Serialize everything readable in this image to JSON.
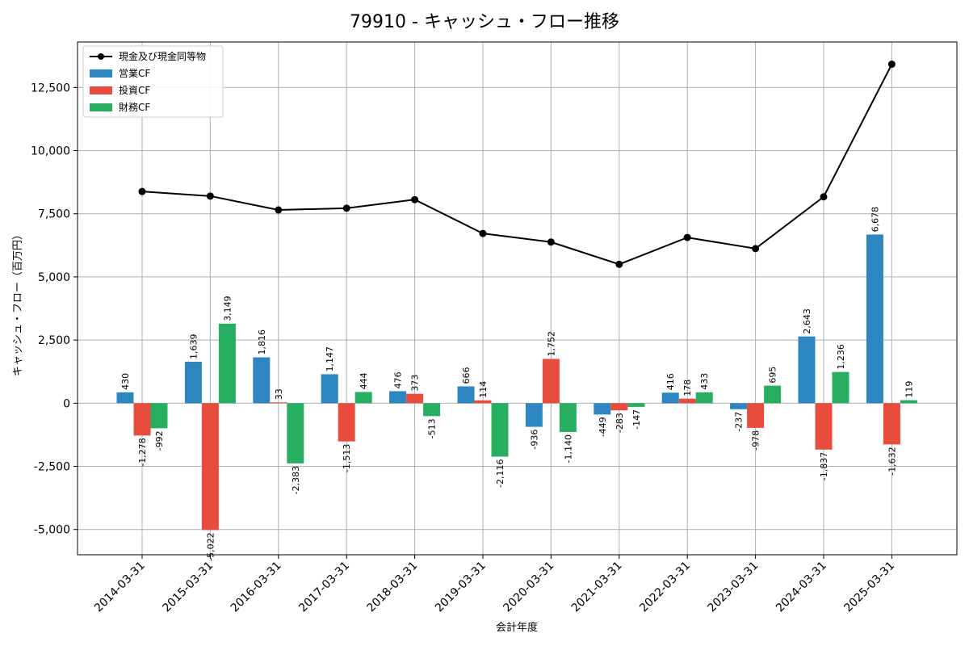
{
  "chart_data": {
    "type": "bar",
    "title": "79910 - キャッシュ・フロー推移",
    "xlabel": "会計年度",
    "ylabel": "キャッシュ・フロー（百万円）",
    "ylim": [
      -6000,
      14300
    ],
    "yticks": [
      -5000,
      -2500,
      0,
      2500,
      5000,
      7500,
      10000,
      12500
    ],
    "ytick_labels": [
      "-5,000",
      "-2,500",
      "0",
      "2,500",
      "5,000",
      "7,500",
      "10,000",
      "12,500"
    ],
    "grid": true,
    "legend_position": "top-left",
    "categories": [
      "2014-03-31",
      "2015-03-31",
      "2016-03-31",
      "2017-03-31",
      "2018-03-31",
      "2019-03-31",
      "2020-03-31",
      "2021-03-31",
      "2022-03-31",
      "2023-03-31",
      "2024-03-31",
      "2025-03-31"
    ],
    "series": [
      {
        "name": "営業CF",
        "kind": "bar",
        "color": "#2e86c1",
        "values": [
          430,
          1639,
          1816,
          1147,
          476,
          666,
          -936,
          -449,
          416,
          -237,
          2643,
          6678
        ],
        "labels": [
          "430",
          "1,639",
          "1,816",
          "1,147",
          "476",
          "666",
          "-936",
          "-449",
          "416",
          "-237",
          "2,643",
          "6,678"
        ]
      },
      {
        "name": "投資CF",
        "kind": "bar",
        "color": "#e74c3c",
        "values": [
          -1278,
          -5022,
          33,
          -1513,
          373,
          114,
          1752,
          -283,
          178,
          -978,
          -1837,
          -1632
        ],
        "labels": [
          "-1,278",
          "-5,022",
          "33",
          "-1,513",
          "373",
          "114",
          "1,752",
          "-283",
          "178",
          "-978",
          "-1,837",
          "-1,632"
        ]
      },
      {
        "name": "財務CF",
        "kind": "bar",
        "color": "#27ae60",
        "values": [
          -992,
          3149,
          -2383,
          444,
          -513,
          -2116,
          -1140,
          -147,
          433,
          695,
          1236,
          119
        ],
        "labels": [
          "-992",
          "3,149",
          "-2,383",
          "444",
          "-513",
          "-2,116",
          "-1,140",
          "-147",
          "433",
          "695",
          "1,236",
          "119"
        ]
      }
    ],
    "line_series": {
      "name": "現金及び現金同等物",
      "kind": "line",
      "color": "#000000",
      "values": [
        8380,
        8200,
        7650,
        7720,
        8060,
        6720,
        6380,
        5500,
        6560,
        6120,
        8170,
        13420
      ]
    }
  }
}
